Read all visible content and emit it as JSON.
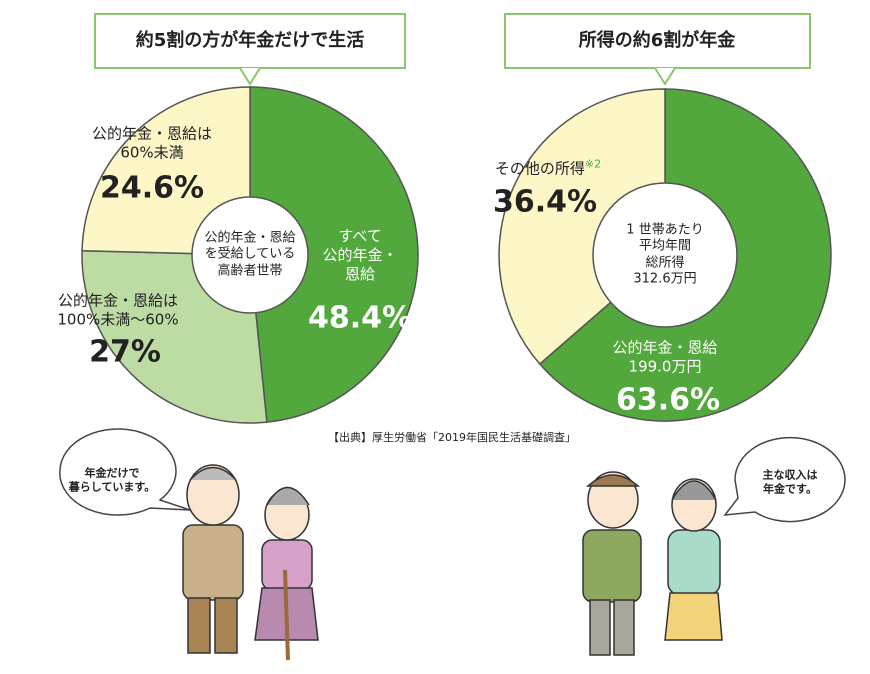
{
  "chart_data": [
    {
      "type": "pie",
      "title": "約5割の方が年金だけで生活",
      "center_label": "公的年金・恩給\nを受給している\n高齢者世帯",
      "categories": [
        "すべて\n公的年金・\n恩給",
        "公的年金・恩給は\n100%未満〜60%",
        "公的年金・恩給は\n60%未満"
      ],
      "values": [
        48.4,
        27,
        24.6
      ],
      "value_labels": [
        "48.4%",
        "27%",
        "24.6%"
      ],
      "colors": [
        "#52a83c",
        "#bcdca4",
        "#fdf6c6"
      ]
    },
    {
      "type": "pie",
      "title": "所得の約6割が年金",
      "center_label": "1 世帯あたり\n平均年間\n総所得\n312.6万円",
      "categories": [
        "公的年金・恩給\n199.0万円",
        "その他の所得"
      ],
      "category_notes": [
        null,
        "※2"
      ],
      "values": [
        63.6,
        36.4
      ],
      "value_labels": [
        "63.6%",
        "36.4%"
      ],
      "colors": [
        "#52a83c",
        "#fdf6c6"
      ]
    }
  ],
  "source": "【出典】厚生労働省「2019年国民生活基礎調査」",
  "speech_bubbles": [
    "年金だけで\n暮らしています。",
    "主な収入は\n年金です。"
  ]
}
